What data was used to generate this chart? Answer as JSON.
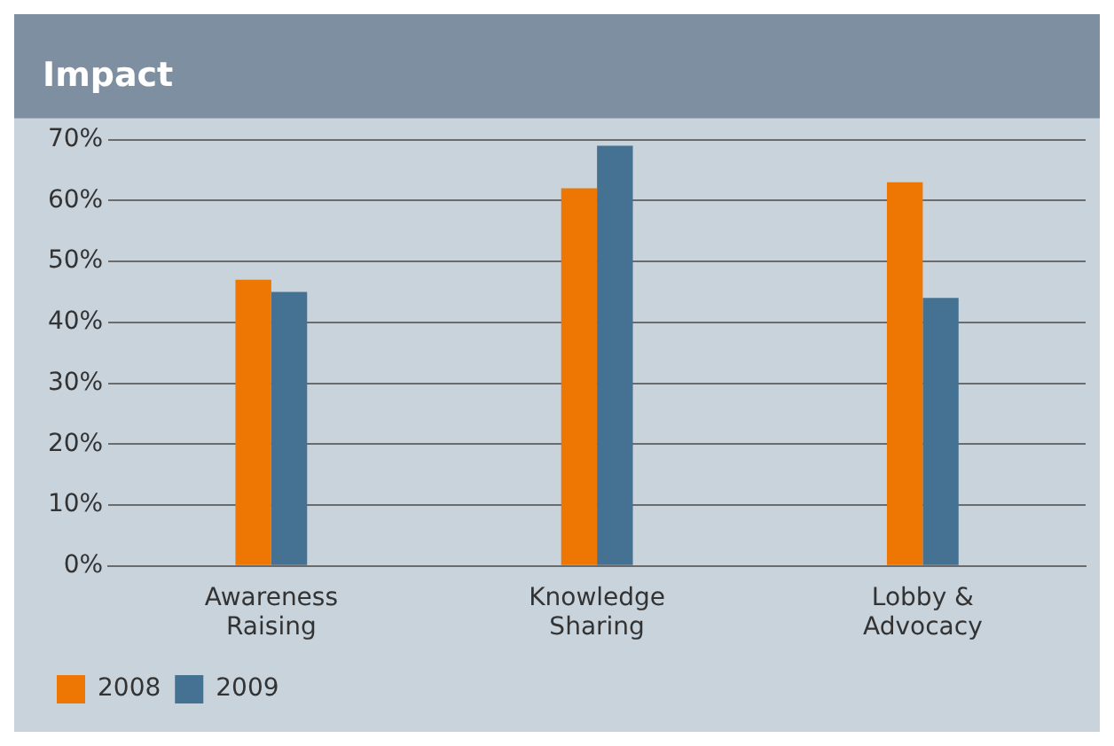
{
  "chart_data": {
    "type": "bar",
    "title": "Impact",
    "categories": [
      "Awareness Raising",
      "Knowledge Sharing",
      "Lobby & Advocacy"
    ],
    "series": [
      {
        "name": "2008",
        "color": "#ee7603",
        "values": [
          47,
          62,
          63
        ]
      },
      {
        "name": "2009",
        "color": "#457292",
        "values": [
          45,
          69,
          44
        ]
      }
    ],
    "ylim": [
      0,
      70
    ],
    "yticks": [
      {
        "value": 0,
        "label": "0%"
      },
      {
        "value": 10,
        "label": "10%"
      },
      {
        "value": 20,
        "label": "20%"
      },
      {
        "value": 30,
        "label": "30%"
      },
      {
        "value": 40,
        "label": "40%"
      },
      {
        "value": 50,
        "label": "50%"
      },
      {
        "value": 60,
        "label": "60%"
      },
      {
        "value": 70,
        "label": "70%"
      }
    ],
    "grid": "y",
    "legend": "bottom left"
  }
}
